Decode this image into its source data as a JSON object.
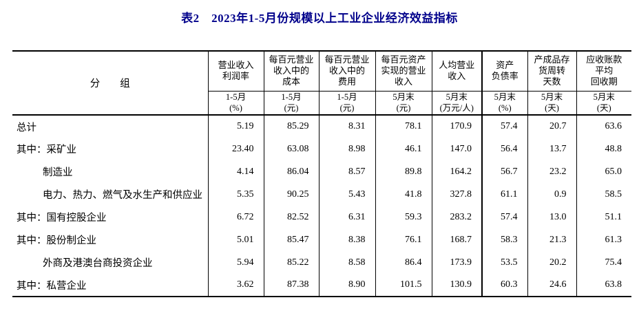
{
  "title": "表2　2023年1-5月份规模以上工业企业经济效益指标",
  "colors": {
    "title_text": "#00008B",
    "table_lines": "#000000",
    "body_text": "#000000",
    "background": "#ffffff"
  },
  "table": {
    "group_header": "分　　组",
    "columns": [
      {
        "label": "营业收入\n利润率",
        "period": "1-5月\n(%)"
      },
      {
        "label": "每百元营业\n收入中的\n成本",
        "period": "1-5月\n(元)"
      },
      {
        "label": "每百元营业\n收入中的\n费用",
        "period": "1-5月\n(元)"
      },
      {
        "label": "每百元资产\n实现的营业\n收入",
        "period": "5月末\n(元)"
      },
      {
        "label": "人均营业\n收入",
        "period": "5月末\n(万元/人)"
      },
      {
        "label": "资产\n负债率",
        "period": "5月末\n(%)"
      },
      {
        "label": "产成品存\n货周转\n天数",
        "period": "5月末\n(天)"
      },
      {
        "label": "应收账款\n平均\n回收期",
        "period": "5月末\n(天)"
      }
    ],
    "rows": [
      {
        "label": "总计",
        "indent": false,
        "values": [
          "5.19",
          "85.29",
          "8.31",
          "78.1",
          "170.9",
          "57.4",
          "20.7",
          "63.6"
        ]
      },
      {
        "label": "其中：采矿业",
        "indent": false,
        "values": [
          "23.40",
          "63.08",
          "8.98",
          "46.1",
          "147.0",
          "56.4",
          "13.7",
          "48.8"
        ]
      },
      {
        "label": "制造业",
        "indent": true,
        "values": [
          "4.14",
          "86.04",
          "8.57",
          "89.8",
          "164.2",
          "56.7",
          "23.2",
          "65.0"
        ]
      },
      {
        "label": "电力、热力、燃气及水生产和供应业",
        "indent": true,
        "values": [
          "5.35",
          "90.25",
          "5.43",
          "41.8",
          "327.8",
          "61.1",
          "0.9",
          "58.5"
        ]
      },
      {
        "label": "其中：国有控股企业",
        "indent": false,
        "values": [
          "6.72",
          "82.52",
          "6.31",
          "59.3",
          "283.2",
          "57.4",
          "13.0",
          "51.1"
        ]
      },
      {
        "label": "其中：股份制企业",
        "indent": false,
        "values": [
          "5.01",
          "85.47",
          "8.38",
          "76.1",
          "168.7",
          "58.3",
          "21.3",
          "61.3"
        ]
      },
      {
        "label": "外商及港澳台商投资企业",
        "indent": true,
        "values": [
          "5.94",
          "85.22",
          "8.58",
          "86.4",
          "173.9",
          "53.5",
          "20.2",
          "75.4"
        ]
      },
      {
        "label": "其中：私营企业",
        "indent": false,
        "values": [
          "3.62",
          "87.38",
          "8.90",
          "101.5",
          "130.9",
          "60.3",
          "24.6",
          "63.8"
        ]
      }
    ]
  }
}
